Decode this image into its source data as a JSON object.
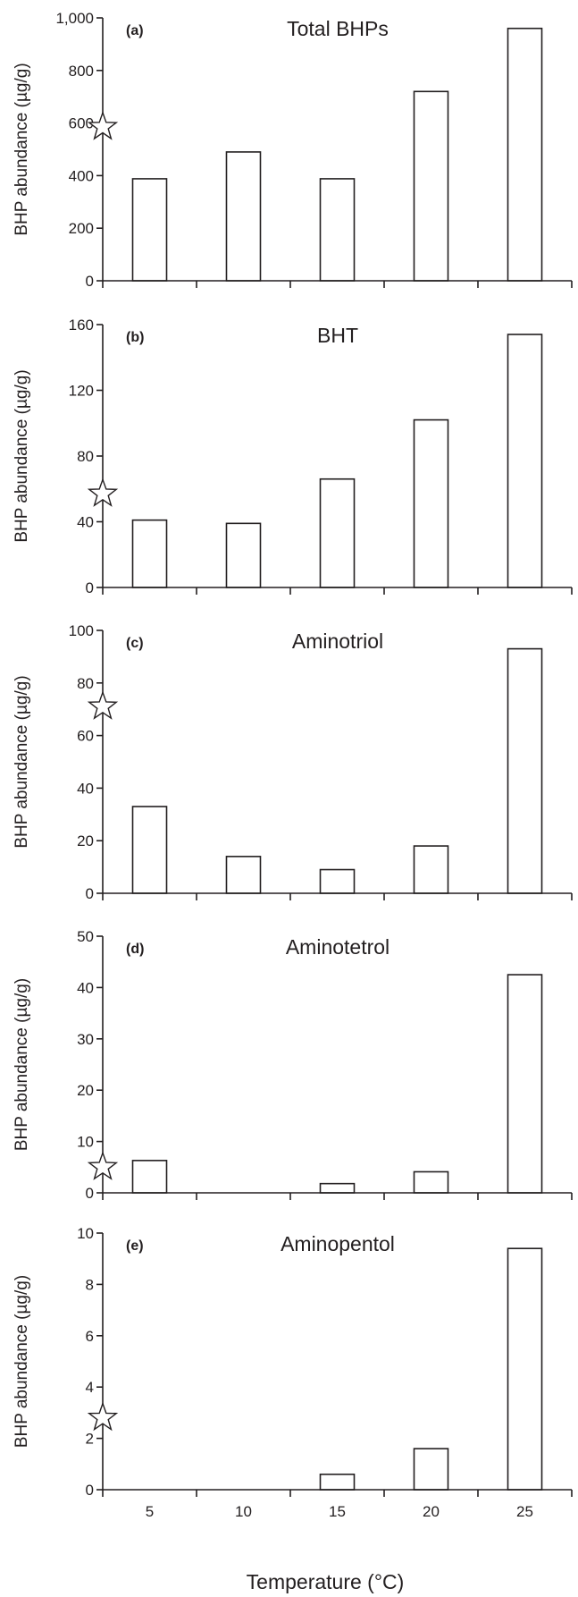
{
  "chart_data": [
    {
      "type": "bar",
      "panel": "(a)",
      "title": "Total BHPs",
      "ylabel": "BHP abundance  (µg/g)",
      "categories": [
        "5",
        "10",
        "15",
        "20",
        "25"
      ],
      "values": [
        388,
        490,
        388,
        720,
        960
      ],
      "ylim": [
        0,
        1000
      ],
      "yticks": [
        0,
        200,
        400,
        600,
        800,
        1000
      ],
      "ytick_labels": [
        "0",
        "200",
        "400",
        "600",
        "800",
        "1,000"
      ],
      "star_value": 585
    },
    {
      "type": "bar",
      "panel": "(b)",
      "title": "BHT",
      "ylabel": "BHP abundance  (µg/g)",
      "categories": [
        "5",
        "10",
        "15",
        "20",
        "25"
      ],
      "values": [
        41,
        39,
        66,
        102,
        154
      ],
      "ylim": [
        0,
        160
      ],
      "yticks": [
        0,
        40,
        80,
        120,
        160
      ],
      "ytick_labels": [
        "0",
        "40",
        "80",
        "120",
        "160"
      ],
      "star_value": 57
    },
    {
      "type": "bar",
      "panel": "(c)",
      "title": "Aminotriol",
      "ylabel": "BHP abundance  (µg/g)",
      "categories": [
        "5",
        "10",
        "15",
        "20",
        "25"
      ],
      "values": [
        33,
        14,
        9,
        18,
        93
      ],
      "ylim": [
        0,
        100
      ],
      "yticks": [
        0,
        20,
        40,
        60,
        80,
        100
      ],
      "ytick_labels": [
        "0",
        "20",
        "40",
        "60",
        "80",
        "100"
      ],
      "star_value": 71
    },
    {
      "type": "bar",
      "panel": "(d)",
      "title": "Aminotetrol",
      "ylabel": "BHP abundance  (µg/g)",
      "categories": [
        "5",
        "10",
        "15",
        "20",
        "25"
      ],
      "values": [
        6.3,
        0,
        1.8,
        4.1,
        42.5
      ],
      "ylim": [
        0,
        50
      ],
      "yticks": [
        0,
        10,
        20,
        30,
        40,
        50
      ],
      "ytick_labels": [
        "0",
        "10",
        "20",
        "30",
        "40",
        "50"
      ],
      "star_value": 5
    },
    {
      "type": "bar",
      "panel": "(e)",
      "title": "Aminopentol",
      "ylabel": "BHP abundance  (µg/g)",
      "categories": [
        "5",
        "10",
        "15",
        "20",
        "25"
      ],
      "values": [
        0,
        0,
        0.6,
        1.6,
        9.4
      ],
      "ylim": [
        0,
        10
      ],
      "yticks": [
        0,
        2,
        4,
        6,
        8,
        10
      ],
      "ytick_labels": [
        "0",
        "2",
        "4",
        "6",
        "8",
        "10"
      ],
      "star_value": 2.8
    }
  ],
  "xlabel": "Temperature  (°C)",
  "xtick_labels": [
    "5",
    "10",
    "15",
    "20",
    "25"
  ],
  "colors": {
    "ink": "#231f20",
    "bar_fill": "#ffffff",
    "background": "#ffffff"
  },
  "marker_icon": "star-outline-icon"
}
